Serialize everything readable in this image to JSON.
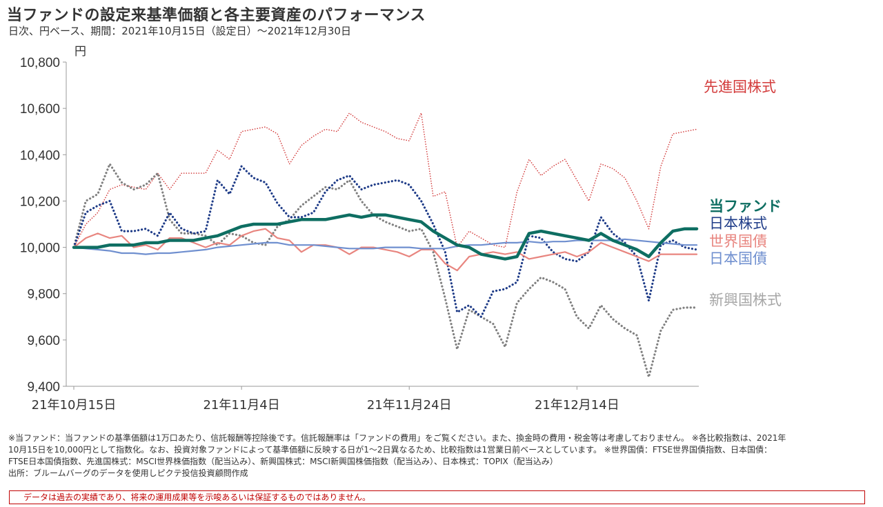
{
  "title": "当ファンドの設定来基準価額と各主要資産のパフォーマンス",
  "subtitle": "日次、円ベース、期間：2021年10月15日（設定日）～2021年12月30日",
  "notes": [
    "※当ファンド：当ファンドの基準価額は1万口あたり、信託報酬等控除後です。信託報酬率は「ファンドの費用」をご覧ください。また、換金時の費用・税金等は考慮しておりません。 ※各比較指数は、2021年",
    "10月15日を10,000円として指数化。なお、投資対象ファンドによって基準価額に反映する日が1～2日異なるため、比較指数は1営業日前ベースとしています。 ※世界国債：FTSE世界国債指数、日本国債：",
    "FTSE日本国債指数、先進国株式：MSCI世界株価指数（配当込み）、新興国株式：MSCI新興国株価指数（配当込み）、日本株式：TOPIX（配当込み）",
    "出所：ブルームバーグのデータを使用しピクテ投信投資顧問作成"
  ],
  "disclaimer": "データは過去の実績であり、将来の運用成果等を示唆あるいは保証するものではありません。",
  "chart_data": {
    "type": "line",
    "ylabel": "円",
    "ylim": [
      9400,
      10800
    ],
    "yticks": [
      9400,
      9600,
      9800,
      10000,
      10200,
      10400,
      10600,
      10800
    ],
    "ytick_labels": [
      "9,400",
      "9,600",
      "9,800",
      "10,000",
      "10,200",
      "10,400",
      "10,600",
      "10,800"
    ],
    "xlim": [
      0,
      52
    ],
    "xticks": [
      0,
      14,
      28,
      42
    ],
    "xtick_labels": [
      "21年10月15日",
      "21年11月4日",
      "21年11月24日",
      "21年12月14日"
    ],
    "grid": false,
    "series": [
      {
        "name": "先進国株式",
        "color": "#d33b3b",
        "style": "dotted",
        "width": 1.6,
        "x": [
          0,
          1,
          2,
          3,
          4,
          5,
          6,
          7,
          8,
          9,
          10,
          11,
          12,
          13,
          14,
          15,
          16,
          17,
          18,
          19,
          20,
          21,
          22,
          23,
          24,
          25,
          26,
          27,
          28,
          29,
          30,
          31,
          32,
          33,
          34,
          35,
          36,
          37,
          38,
          39,
          40,
          41,
          42,
          43,
          44,
          45,
          46,
          47,
          48,
          49,
          50,
          51,
          52
        ],
        "values": [
          10000,
          10100,
          10150,
          10250,
          10270,
          10260,
          10250,
          10320,
          10250,
          10320,
          10320,
          10320,
          10420,
          10380,
          10500,
          10510,
          10520,
          10490,
          10360,
          10440,
          10480,
          10510,
          10500,
          10580,
          10540,
          10520,
          10500,
          10470,
          10460,
          10580,
          10220,
          10240,
          10000,
          10070,
          10040,
          10010,
          10000,
          10240,
          10380,
          10310,
          10350,
          10380,
          10290,
          10200,
          10360,
          10340,
          10300,
          10200,
          10080,
          10350,
          10490,
          10500,
          10510
        ]
      },
      {
        "name": "新興国株式",
        "color": "#808080",
        "style": "dotted",
        "width": 3.2,
        "x": [
          0,
          1,
          2,
          3,
          4,
          5,
          6,
          7,
          8,
          9,
          10,
          11,
          12,
          13,
          14,
          15,
          16,
          17,
          18,
          19,
          20,
          21,
          22,
          23,
          24,
          25,
          26,
          27,
          28,
          29,
          30,
          31,
          32,
          33,
          34,
          35,
          36,
          37,
          38,
          39,
          40,
          41,
          42,
          43,
          44,
          45,
          46,
          47,
          48,
          49,
          50,
          51,
          52
        ],
        "values": [
          10000,
          10200,
          10230,
          10360,
          10280,
          10250,
          10270,
          10320,
          10120,
          10060,
          10060,
          10050,
          10010,
          10060,
          10050,
          10020,
          10010,
          10090,
          10120,
          10180,
          10220,
          10260,
          10250,
          10290,
          10200,
          10140,
          10110,
          10090,
          10070,
          10080,
          9980,
          9780,
          9560,
          9730,
          9700,
          9670,
          9570,
          9760,
          9820,
          9870,
          9850,
          9820,
          9700,
          9650,
          9750,
          9690,
          9650,
          9620,
          9440,
          9640,
          9730,
          9740,
          9740
        ]
      },
      {
        "name": "日本株式",
        "color": "#1f3c88",
        "style": "dotted",
        "width": 3.2,
        "x": [
          0,
          1,
          2,
          3,
          4,
          5,
          6,
          7,
          8,
          9,
          10,
          11,
          12,
          13,
          14,
          15,
          16,
          17,
          18,
          19,
          20,
          21,
          22,
          23,
          24,
          25,
          26,
          27,
          28,
          29,
          30,
          31,
          32,
          33,
          34,
          35,
          36,
          37,
          38,
          39,
          40,
          41,
          42,
          43,
          44,
          45,
          46,
          47,
          48,
          49,
          50,
          51,
          52
        ],
        "values": [
          10000,
          10150,
          10180,
          10200,
          10070,
          10070,
          10080,
          10050,
          10150,
          10080,
          10060,
          10070,
          10290,
          10230,
          10350,
          10300,
          10280,
          10190,
          10130,
          10130,
          10150,
          10240,
          10290,
          10310,
          10250,
          10270,
          10280,
          10290,
          10270,
          10200,
          10100,
          9980,
          9720,
          9750,
          9700,
          9810,
          9820,
          9850,
          10050,
          10040,
          9980,
          9950,
          9940,
          9980,
          10130,
          10060,
          10020,
          9960,
          9770,
          10010,
          10030,
          10000,
          9990
        ]
      },
      {
        "name": "世界国債",
        "color": "#e8857f",
        "style": "solid",
        "width": 2.2,
        "x": [
          0,
          1,
          2,
          3,
          4,
          5,
          6,
          7,
          8,
          9,
          10,
          11,
          12,
          13,
          14,
          15,
          16,
          17,
          18,
          19,
          20,
          21,
          22,
          23,
          24,
          25,
          26,
          27,
          28,
          29,
          30,
          31,
          32,
          33,
          34,
          35,
          36,
          37,
          38,
          39,
          40,
          41,
          42,
          43,
          44,
          45,
          46,
          47,
          48,
          49,
          50,
          51,
          52
        ],
        "values": [
          10000,
          10040,
          10060,
          10040,
          10050,
          10000,
          10010,
          9990,
          10040,
          10040,
          10020,
          10000,
          10020,
          10010,
          10050,
          10070,
          10080,
          10040,
          10030,
          9980,
          10010,
          10010,
          10000,
          9970,
          10000,
          10000,
          9990,
          9980,
          9960,
          9990,
          9990,
          9930,
          9900,
          9960,
          9970,
          9980,
          9970,
          9980,
          9950,
          9960,
          9970,
          9980,
          9960,
          9980,
          10020,
          10000,
          9980,
          9960,
          9940,
          9970,
          9970,
          9970,
          9970
        ]
      },
      {
        "name": "日本国債",
        "color": "#6f8fcf",
        "style": "solid",
        "width": 2.2,
        "x": [
          0,
          1,
          2,
          3,
          4,
          5,
          6,
          7,
          8,
          9,
          10,
          11,
          12,
          13,
          14,
          15,
          16,
          17,
          18,
          19,
          20,
          21,
          22,
          23,
          24,
          25,
          26,
          27,
          28,
          29,
          30,
          31,
          32,
          33,
          34,
          35,
          36,
          37,
          38,
          39,
          40,
          41,
          42,
          43,
          44,
          45,
          46,
          47,
          48,
          49,
          50,
          51,
          52
        ],
        "values": [
          10000,
          9995,
          9990,
          9985,
          9975,
          9975,
          9970,
          9975,
          9975,
          9980,
          9985,
          9990,
          10000,
          10005,
          10010,
          10015,
          10020,
          10020,
          10010,
          10010,
          10010,
          10005,
          10000,
          9995,
          9995,
          9995,
          10000,
          10000,
          10000,
          9995,
          9995,
          9995,
          10005,
          10010,
          10010,
          10015,
          10020,
          10020,
          10025,
          10020,
          10025,
          10025,
          10030,
          10030,
          10030,
          10030,
          10035,
          10030,
          10025,
          10020,
          10015,
          10010,
          10010
        ]
      },
      {
        "name": "当ファンド",
        "color": "#0e6e62",
        "style": "solid",
        "width": 4.5,
        "x": [
          0,
          1,
          2,
          3,
          4,
          5,
          6,
          7,
          8,
          9,
          10,
          11,
          12,
          13,
          14,
          15,
          16,
          17,
          18,
          19,
          20,
          21,
          22,
          23,
          24,
          25,
          26,
          27,
          28,
          29,
          30,
          31,
          32,
          33,
          34,
          35,
          36,
          37,
          38,
          39,
          40,
          41,
          42,
          43,
          44,
          45,
          46,
          47,
          48,
          49,
          50,
          51,
          52
        ],
        "values": [
          10000,
          10000,
          10000,
          10010,
          10010,
          10010,
          10020,
          10020,
          10030,
          10030,
          10030,
          10040,
          10050,
          10070,
          10090,
          10100,
          10100,
          10100,
          10110,
          10120,
          10120,
          10120,
          10130,
          10140,
          10130,
          10140,
          10140,
          10130,
          10120,
          10110,
          10070,
          10040,
          10010,
          10000,
          9970,
          9960,
          9950,
          9960,
          10060,
          10070,
          10060,
          10050,
          10040,
          10030,
          10060,
          10030,
          10010,
          9990,
          9960,
          10020,
          10070,
          10080,
          10080
        ]
      }
    ]
  },
  "legend": [
    {
      "label": "先進国株式",
      "color": "#d33b3b"
    },
    {
      "label": "当ファンド",
      "color": "#0e6e62"
    },
    {
      "label": "日本株式",
      "color": "#1f3c88"
    },
    {
      "label": "世界国債",
      "color": "#e8857f"
    },
    {
      "label": "日本国債",
      "color": "#6f8fcf"
    },
    {
      "label": "新興国株式",
      "color": "#a6a6a6"
    }
  ]
}
